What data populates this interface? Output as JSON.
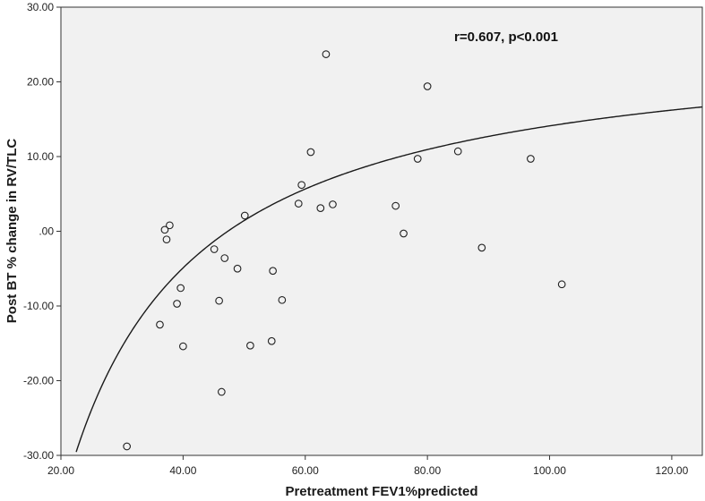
{
  "chart_data": {
    "type": "scatter",
    "title": "",
    "xlabel": "Pretreatment FEV1%predicted",
    "ylabel": "Post BT % change in RV/TLC",
    "xlim": [
      20,
      125
    ],
    "ylim": [
      -30,
      30
    ],
    "xticks": [
      20,
      40,
      60,
      80,
      100,
      120
    ],
    "xtick_labels": [
      "20.00",
      "40.00",
      "60.00",
      "80.00",
      "100.00",
      "120.00"
    ],
    "yticks": [
      -30,
      -20,
      -10,
      0,
      10,
      20,
      30
    ],
    "ytick_labels": [
      "-30.00",
      "-20.00",
      "-10.00",
      ".00",
      "10.00",
      "20.00",
      "30.00"
    ],
    "grid": false,
    "annotation": "r=0.607, p<0.001",
    "points": [
      {
        "x": 30.8,
        "y": -28.8
      },
      {
        "x": 36.2,
        "y": -12.5
      },
      {
        "x": 37.0,
        "y": 0.2
      },
      {
        "x": 37.3,
        "y": -1.1
      },
      {
        "x": 37.8,
        "y": 0.8
      },
      {
        "x": 39.0,
        "y": -9.7
      },
      {
        "x": 39.6,
        "y": -7.6
      },
      {
        "x": 40.0,
        "y": -15.4
      },
      {
        "x": 45.1,
        "y": -2.4
      },
      {
        "x": 45.9,
        "y": -9.3
      },
      {
        "x": 46.3,
        "y": -21.5
      },
      {
        "x": 46.8,
        "y": -3.6
      },
      {
        "x": 48.9,
        "y": -5.0
      },
      {
        "x": 50.1,
        "y": 2.1
      },
      {
        "x": 51.0,
        "y": -15.3
      },
      {
        "x": 54.5,
        "y": -14.7
      },
      {
        "x": 54.7,
        "y": -5.3
      },
      {
        "x": 56.2,
        "y": -9.2
      },
      {
        "x": 58.9,
        "y": 3.7
      },
      {
        "x": 59.4,
        "y": 6.2
      },
      {
        "x": 60.9,
        "y": 10.6
      },
      {
        "x": 62.5,
        "y": 3.1
      },
      {
        "x": 63.4,
        "y": 23.7
      },
      {
        "x": 64.5,
        "y": 3.6
      },
      {
        "x": 74.8,
        "y": 3.4
      },
      {
        "x": 76.1,
        "y": -0.3
      },
      {
        "x": 78.4,
        "y": 9.7
      },
      {
        "x": 80.0,
        "y": 19.4
      },
      {
        "x": 85.0,
        "y": 10.7
      },
      {
        "x": 88.9,
        "y": -2.2
      },
      {
        "x": 96.9,
        "y": 9.7
      },
      {
        "x": 102.0,
        "y": -7.1
      }
    ],
    "fit": {
      "type": "inverse",
      "a": 26.78,
      "b": -1267.3
    }
  }
}
